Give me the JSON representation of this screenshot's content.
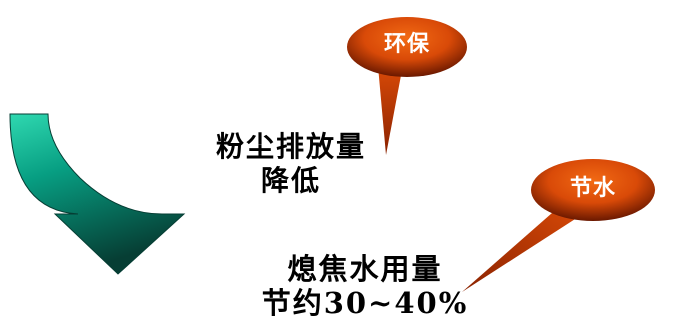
{
  "callouts": {
    "env_label": "环保",
    "water_label": "节水"
  },
  "statements": {
    "dust": {
      "line1": "粉尘排放量",
      "line2": "降低"
    },
    "water": {
      "line1": "熄焦水用量",
      "line2": "节约30~40%"
    }
  },
  "colors": {
    "bubble_orange": "#e8540c",
    "bubble_dark": "#6a1800",
    "arrow_green": "#079e82",
    "arrow_light": "#2fd8b0",
    "arrow_dark": "#063e34"
  },
  "icons": {
    "arrow": "curved-down-right-arrow-icon",
    "bubble": "speech-bubble-icon"
  }
}
